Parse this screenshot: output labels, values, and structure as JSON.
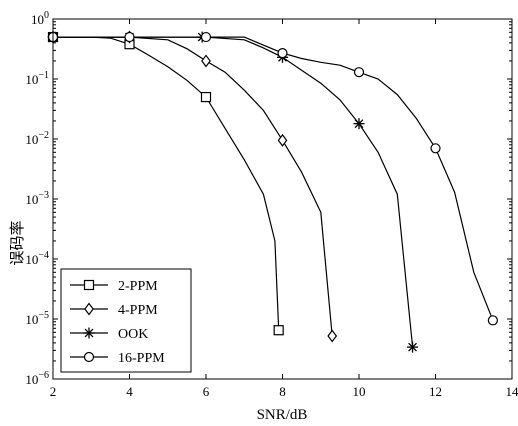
{
  "chart_data": {
    "type": "line",
    "xlabel": "SNR/dB",
    "ylabel": "误码率",
    "xlim": [
      2,
      14
    ],
    "ylim": [
      1e-06,
      1
    ],
    "yscale": "log",
    "xticks": [
      2,
      4,
      6,
      8,
      10,
      12,
      14
    ],
    "yticks": [
      {
        "value": 1,
        "mant": "10",
        "exp": "0"
      },
      {
        "value": 0.1,
        "mant": "10",
        "exp": "−1"
      },
      {
        "value": 0.01,
        "mant": "10",
        "exp": "−2"
      },
      {
        "value": 0.001,
        "mant": "10",
        "exp": "−3"
      },
      {
        "value": 0.0001,
        "mant": "10",
        "exp": "−4"
      },
      {
        "value": 1e-05,
        "mant": "10",
        "exp": "−5"
      },
      {
        "value": 1e-06,
        "mant": "10",
        "exp": "−6"
      }
    ],
    "grid": false,
    "legend_position": "bottom-left",
    "series": [
      {
        "name": "2-PPM",
        "marker": "square",
        "line": [
          [
            2,
            0.5
          ],
          [
            3,
            0.5
          ],
          [
            3.5,
            0.48
          ],
          [
            4,
            0.38
          ],
          [
            4.5,
            0.25
          ],
          [
            5,
            0.16
          ],
          [
            5.5,
            0.095
          ],
          [
            6,
            0.05
          ],
          [
            6.5,
            0.015
          ],
          [
            7,
            0.0045
          ],
          [
            7.5,
            0.0012
          ],
          [
            7.8,
            0.0002
          ],
          [
            7.9,
            6.5e-06
          ]
        ],
        "markers": [
          [
            2,
            0.5
          ],
          [
            4,
            0.38
          ],
          [
            6,
            0.05
          ],
          [
            7.9,
            6.5e-06
          ]
        ]
      },
      {
        "name": "4-PPM",
        "marker": "diamond",
        "line": [
          [
            2,
            0.5
          ],
          [
            4,
            0.5
          ],
          [
            5,
            0.45
          ],
          [
            5.5,
            0.32
          ],
          [
            6,
            0.2
          ],
          [
            6.5,
            0.13
          ],
          [
            7,
            0.065
          ],
          [
            7.5,
            0.03
          ],
          [
            8,
            0.0095
          ],
          [
            8.5,
            0.0028
          ],
          [
            9,
            0.0006
          ],
          [
            9.3,
            5.2e-06
          ]
        ],
        "markers": [
          [
            2,
            0.5
          ],
          [
            4,
            0.5
          ],
          [
            6,
            0.2
          ],
          [
            8,
            0.0095
          ],
          [
            9.3,
            5.2e-06
          ]
        ]
      },
      {
        "name": "OOK",
        "marker": "star",
        "line": [
          [
            2,
            0.5
          ],
          [
            6,
            0.5
          ],
          [
            7,
            0.45
          ],
          [
            7.5,
            0.33
          ],
          [
            8,
            0.23
          ],
          [
            8.5,
            0.14
          ],
          [
            9,
            0.085
          ],
          [
            9.5,
            0.045
          ],
          [
            10,
            0.018
          ],
          [
            10.5,
            0.006
          ],
          [
            11,
            0.0012
          ],
          [
            11.4,
            3.4e-06
          ]
        ],
        "markers": [
          [
            2,
            0.5
          ],
          [
            4,
            0.5
          ],
          [
            5.9,
            0.5
          ],
          [
            8,
            0.23
          ],
          [
            10,
            0.018
          ],
          [
            11.4,
            3.4e-06
          ]
        ]
      },
      {
        "name": "16-PPM",
        "marker": "circle",
        "line": [
          [
            2,
            0.5
          ],
          [
            7,
            0.5
          ],
          [
            8,
            0.27
          ],
          [
            8.5,
            0.22
          ],
          [
            9,
            0.19
          ],
          [
            9.5,
            0.17
          ],
          [
            10,
            0.13
          ],
          [
            10.5,
            0.1
          ],
          [
            11,
            0.055
          ],
          [
            11.5,
            0.022
          ],
          [
            12,
            0.007
          ],
          [
            12.5,
            0.0013
          ],
          [
            13,
            6e-05
          ],
          [
            13.5,
            9.5e-06
          ]
        ],
        "markers": [
          [
            2,
            0.5
          ],
          [
            4,
            0.5
          ],
          [
            6,
            0.5
          ],
          [
            8,
            0.27
          ],
          [
            10,
            0.13
          ],
          [
            12,
            0.007
          ],
          [
            13.5,
            9.5e-06
          ]
        ]
      }
    ]
  }
}
